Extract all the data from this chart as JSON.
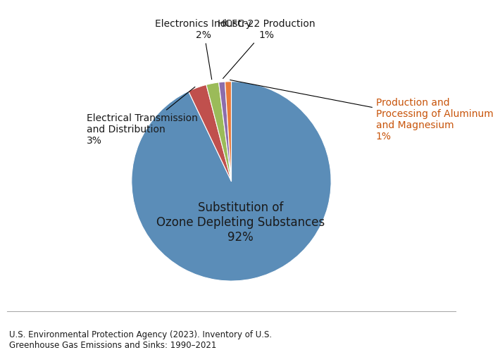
{
  "slices": [
    {
      "label": "Substitution of\nOzone Depleting Substances\n92%",
      "pct": 92,
      "color": "#5B8DB8",
      "text_color": "#1a1a1a"
    },
    {
      "label": "Electrical Transmission\nand Distribution\n3%",
      "pct": 3,
      "color": "#C0504D",
      "text_color": "#1a1a1a"
    },
    {
      "label": "Electronics Industry\n2%",
      "pct": 2,
      "color": "#9BBB59",
      "text_color": "#1a1a1a"
    },
    {
      "label": "HCFC-22 Production\n1%",
      "pct": 1,
      "color": "#8C6DAB",
      "text_color": "#1a1a1a"
    },
    {
      "label": "Production and\nProcessing of Aluminum\nand Magnesium\n1%",
      "pct": 1,
      "color": "#E8793A",
      "text_color": "#C8540A"
    }
  ],
  "footnote": "U.S. Environmental Protection Agency (2023). Inventory of U.S.\nGreenhouse Gas Emissions and Sinks: 1990–2021",
  "footnote_color": "#1a1a1a",
  "bg_color": "#ffffff",
  "startangle": 90,
  "label_fontsize": 10,
  "footnote_fontsize": 8.5,
  "inner_label": "Substitution of\nOzone Depleting Substances\n92%",
  "inner_label_fontsize": 12
}
